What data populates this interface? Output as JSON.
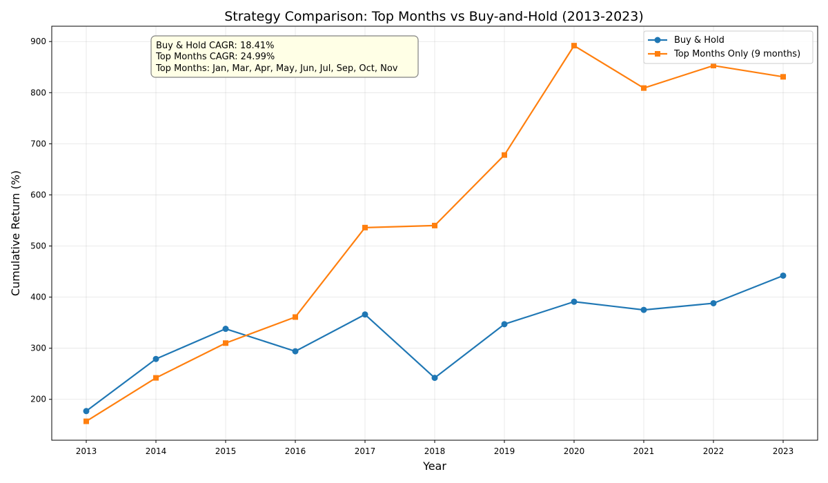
{
  "chart_data": {
    "type": "line",
    "title": "Strategy Comparison: Top Months vs Buy-and-Hold (2013-2023)",
    "xlabel": "Year",
    "ylabel": "Cumulative Return (%)",
    "x": [
      2013,
      2014,
      2015,
      2016,
      2017,
      2018,
      2019,
      2020,
      2021,
      2022,
      2023
    ],
    "ylim": [
      120,
      930
    ],
    "yticks": [
      200,
      300,
      400,
      500,
      600,
      700,
      800,
      900
    ],
    "grid": true,
    "legend_position": "top-right",
    "series": [
      {
        "name": "Buy & Hold",
        "color": "#1f77b4",
        "marker": "circle",
        "values": [
          177,
          279,
          338,
          294,
          366,
          242,
          347,
          391,
          375,
          388,
          442
        ]
      },
      {
        "name": "Top Months Only (9 months)",
        "color": "#ff7f0e",
        "marker": "square",
        "values": [
          157,
          242,
          310,
          361,
          536,
          540,
          678,
          892,
          809,
          853,
          831
        ]
      }
    ],
    "annotation": [
      "Buy & Hold CAGR: 18.41%",
      "Top Months CAGR: 24.99%",
      "Top Months: Jan, Mar, Apr, May, Jun, Jul, Sep, Oct, Nov"
    ]
  }
}
